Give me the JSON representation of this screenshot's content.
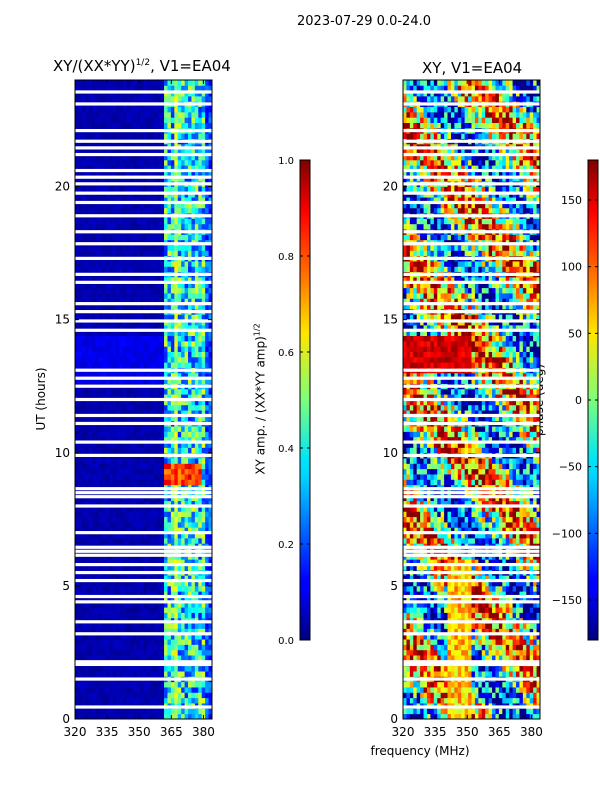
{
  "figure": {
    "suptitle": "2023-07-29 0.0-24.0",
    "shared_xlabel": "frequency (MHz)"
  },
  "chart_data": [
    {
      "type": "heatmap",
      "title": "XY/(XX*YY)^1/2, V1=EA04",
      "title_parts": {
        "base": "XY/(XX*YY)",
        "sup": "1/2",
        "rest": ", V1=EA04"
      },
      "xlabel": "frequency (MHz)",
      "ylabel": "UT (hours)",
      "xlim": [
        320,
        384
      ],
      "ylim": [
        0,
        24
      ],
      "xticks": [
        320,
        335,
        350,
        365,
        380
      ],
      "yticks": [
        0,
        5,
        10,
        15,
        20
      ],
      "colorbar": {
        "label": "XY amp. / (XX*YY amp)^1/2",
        "label_parts": {
          "base": "XY amp. / (XX*YY amp)",
          "sup": "1/2"
        },
        "range": [
          0.0,
          1.0
        ],
        "ticks": [
          0.0,
          0.2,
          0.4,
          0.6,
          0.8,
          1.0
        ],
        "tick_labels": [
          "0.0",
          "0.2",
          "0.4",
          "0.6",
          "0.8",
          "1.0"
        ],
        "colormap": "jet"
      },
      "notes": "Low amplitude (~0.0) across 320–360 MHz; higher, variable values in 360–382 MHz band; peak ~0.8–0.9 near UT 9.0–9.5 h around 363–378 MHz."
    },
    {
      "type": "heatmap",
      "title": "XY, V1=EA04",
      "xlabel": "frequency (MHz)",
      "ylabel": "",
      "xlim": [
        320,
        384
      ],
      "ylim": [
        0,
        24
      ],
      "xticks": [
        320,
        335,
        350,
        365,
        380
      ],
      "yticks": [
        0,
        5,
        10,
        15,
        20
      ],
      "colorbar": {
        "label": "phase (deg)",
        "range": [
          -180,
          180
        ],
        "ticks": [
          -150,
          -100,
          -50,
          0,
          50,
          100,
          150
        ],
        "tick_labels": [
          "−150",
          "−100",
          "−50",
          "0",
          "50",
          "100",
          "150"
        ],
        "colormap": "jet"
      },
      "notes": "Phase varies widely; strong positive (~150 deg) region near UT 13–14.5 h around 320–350 MHz."
    }
  ],
  "gaps_hours": [
    0.45,
    1.5,
    2.05,
    2.15,
    3.2,
    3.65,
    4.4,
    4.6,
    5.2,
    5.5,
    5.8,
    6.15,
    6.3,
    6.45,
    7.0,
    8.0,
    8.35,
    8.5,
    8.65,
    9.9,
    10.4,
    11.1,
    11.4,
    12.0,
    12.5,
    12.8,
    13.1,
    14.6,
    14.95,
    15.3,
    15.6,
    16.4,
    16.7,
    17.3,
    17.85,
    18.3,
    18.9,
    19.4,
    19.75,
    20.1,
    20.35,
    20.6,
    21.2,
    21.45,
    21.7,
    22.1,
    23.1,
    23.55
  ]
}
